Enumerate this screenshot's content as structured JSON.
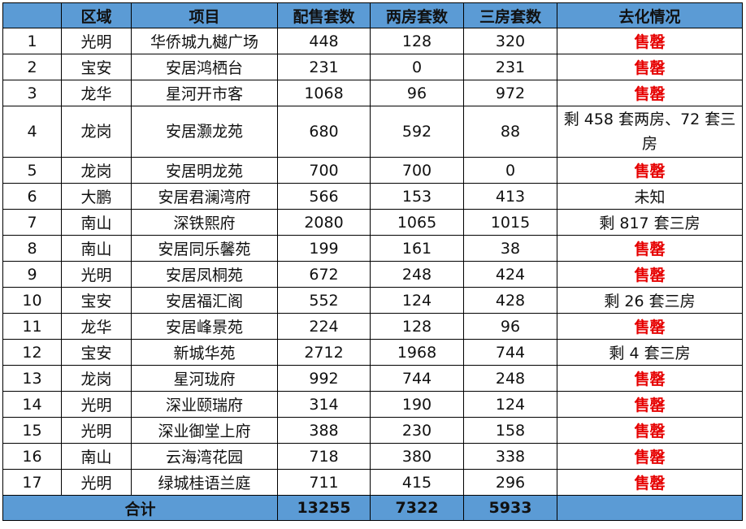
{
  "headers": [
    "",
    "区域",
    "项目",
    "配售套数",
    "两房套数",
    "三房套数",
    "去化情况"
  ],
  "rows": [
    {
      "no": "1",
      "region": "光明",
      "project": "华侨城九樾广场",
      "total": "448",
      "two": "128",
      "three": "320",
      "status": "售罄",
      "sold": true
    },
    {
      "no": "2",
      "region": "宝安",
      "project": "安居鸿栖台",
      "total": "231",
      "two": "0",
      "three": "231",
      "status": "售罄",
      "sold": true
    },
    {
      "no": "3",
      "region": "龙华",
      "project": "星河开市客",
      "total": "1068",
      "two": "96",
      "three": "972",
      "status": "售罄",
      "sold": true
    },
    {
      "no": "4",
      "region": "龙岗",
      "project": "安居灏龙苑",
      "total": "680",
      "two": "592",
      "three": "88",
      "status": "剩 458 套两房、72 套三房",
      "sold": false,
      "tall": true
    },
    {
      "no": "5",
      "region": "龙岗",
      "project": "安居明龙苑",
      "total": "700",
      "two": "700",
      "three": "0",
      "status": "售罄",
      "sold": true
    },
    {
      "no": "6",
      "region": "大鹏",
      "project": "安居君澜湾府",
      "total": "566",
      "two": "153",
      "three": "413",
      "status": "未知",
      "sold": false
    },
    {
      "no": "7",
      "region": "南山",
      "project": "深铁熙府",
      "total": "2080",
      "two": "1065",
      "three": "1015",
      "status": "剩 817 套三房",
      "sold": false
    },
    {
      "no": "8",
      "region": "南山",
      "project": "安居同乐馨苑",
      "total": "199",
      "two": "161",
      "three": "38",
      "status": "售罄",
      "sold": true
    },
    {
      "no": "9",
      "region": "光明",
      "project": "安居凤桐苑",
      "total": "672",
      "two": "248",
      "three": "424",
      "status": "售罄",
      "sold": true
    },
    {
      "no": "10",
      "region": "宝安",
      "project": "安居福汇阁",
      "total": "552",
      "two": "124",
      "three": "428",
      "status": "剩 26 套三房",
      "sold": false
    },
    {
      "no": "11",
      "region": "龙华",
      "project": "安居峰景苑",
      "total": "224",
      "two": "128",
      "three": "96",
      "status": "售罄",
      "sold": true
    },
    {
      "no": "12",
      "region": "宝安",
      "project": "新城华苑",
      "total": "2712",
      "two": "1968",
      "three": "744",
      "status": "剩 4 套三房",
      "sold": false
    },
    {
      "no": "13",
      "region": "龙岗",
      "project": "星河珑府",
      "total": "992",
      "two": "744",
      "three": "248",
      "status": "售罄",
      "sold": true
    },
    {
      "no": "14",
      "region": "光明",
      "project": "深业颐瑞府",
      "total": "314",
      "two": "190",
      "three": "124",
      "status": "售罄",
      "sold": true
    },
    {
      "no": "15",
      "region": "光明",
      "project": "深业御堂上府",
      "total": "388",
      "two": "230",
      "three": "158",
      "status": "售罄",
      "sold": true
    },
    {
      "no": "16",
      "region": "南山",
      "project": "云海湾花园",
      "total": "718",
      "two": "380",
      "three": "338",
      "status": "售罄",
      "sold": true
    },
    {
      "no": "17",
      "region": "光明",
      "project": "绿城桂语兰庭",
      "total": "711",
      "two": "415",
      "three": "296",
      "status": "售罄",
      "sold": true
    }
  ],
  "totals": {
    "label": "合计",
    "total": "13255",
    "two": "7322",
    "three": "5933",
    "status": ""
  },
  "colors": {
    "header_bg": "#5b9bd5",
    "sold_text": "#e60000"
  }
}
